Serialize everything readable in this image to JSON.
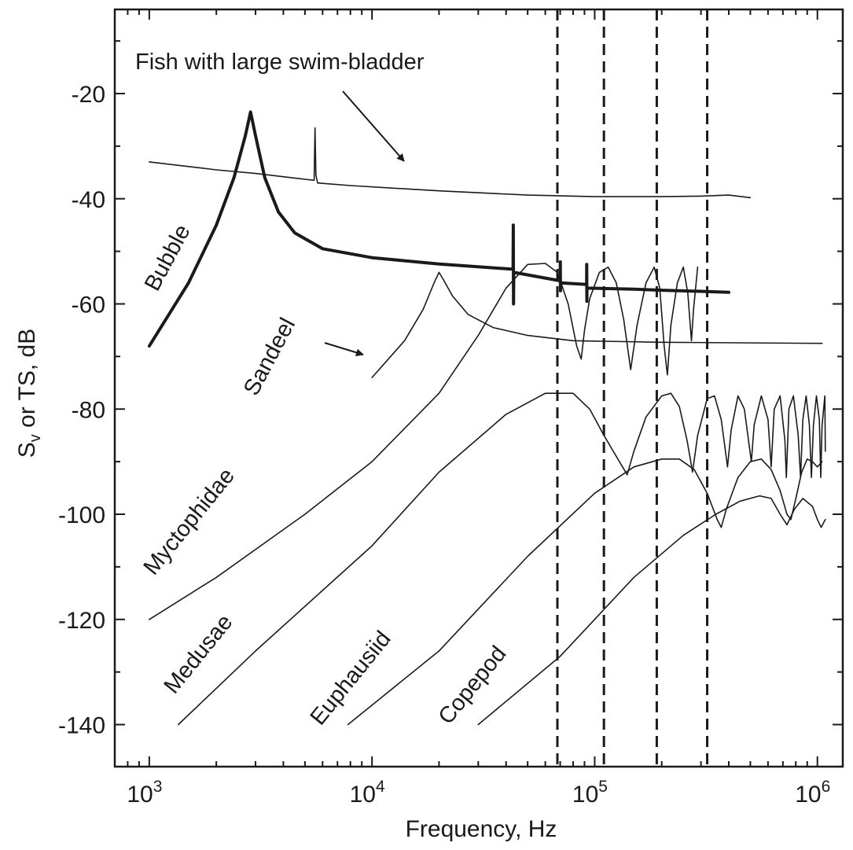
{
  "chart_data": {
    "type": "line",
    "title": "",
    "xlabel": "Frequency, Hz",
    "ylabel": {
      "base": "S",
      "sub": "v",
      "rest": " or TS, dB"
    },
    "xscale": "log",
    "xlim": [
      700,
      1300000
    ],
    "ylim": [
      -148,
      -4
    ],
    "xticks": [
      {
        "value": 1000,
        "base": "10",
        "exp": "3"
      },
      {
        "value": 10000,
        "base": "10",
        "exp": "4"
      },
      {
        "value": 100000,
        "base": "10",
        "exp": "5"
      },
      {
        "value": 1000000,
        "base": "10",
        "exp": "6"
      }
    ],
    "yticks": [
      -20,
      -40,
      -60,
      -80,
      -100,
      -120,
      -140
    ],
    "grid": false,
    "vlines_dashed": [
      68000,
      110000,
      190000,
      320000
    ],
    "series": [
      {
        "name": "Fish with large swim-bladder",
        "width": 1.6,
        "points": [
          [
            1000,
            -33
          ],
          [
            2000,
            -34.5
          ],
          [
            3000,
            -35.2
          ],
          [
            5000,
            -36.3
          ],
          [
            5500,
            -36.5
          ],
          [
            5550,
            -26.5
          ],
          [
            5600,
            -35.5
          ],
          [
            5700,
            -37
          ],
          [
            8000,
            -37.5
          ],
          [
            20000,
            -38.5
          ],
          [
            50000,
            -39.3
          ],
          [
            100000,
            -39.6
          ],
          [
            200000,
            -39.6
          ],
          [
            300000,
            -39.5
          ],
          [
            400000,
            -39.3
          ],
          [
            500000,
            -39.8
          ]
        ]
      },
      {
        "name": "Bubble",
        "width": 4,
        "points": [
          [
            1000,
            -68
          ],
          [
            1500,
            -56
          ],
          [
            2000,
            -45
          ],
          [
            2400,
            -36
          ],
          [
            2700,
            -28
          ],
          [
            2850,
            -23.5
          ],
          [
            3000,
            -28
          ],
          [
            3300,
            -36
          ],
          [
            3800,
            -42.5
          ],
          [
            4500,
            -46.5
          ],
          [
            6000,
            -49.5
          ],
          [
            10000,
            -51.2
          ],
          [
            20000,
            -52.4
          ],
          [
            43000,
            -53.4
          ],
          [
            43100,
            -45
          ],
          [
            43200,
            -60
          ],
          [
            43300,
            -54
          ],
          [
            70000,
            -55.6
          ],
          [
            70100,
            -52
          ],
          [
            70200,
            -57.5
          ],
          [
            70300,
            -56
          ],
          [
            92000,
            -56.3
          ],
          [
            92100,
            -52.5
          ],
          [
            92200,
            -59.5
          ],
          [
            92300,
            -57
          ],
          [
            150000,
            -57.2
          ],
          [
            200000,
            -57.4
          ],
          [
            300000,
            -57.6
          ],
          [
            400000,
            -57.8
          ]
        ]
      },
      {
        "name": "Sandeel",
        "width": 1.6,
        "points": [
          [
            10000,
            -74
          ],
          [
            14000,
            -67
          ],
          [
            17000,
            -61
          ],
          [
            19000,
            -56
          ],
          [
            20000,
            -54
          ],
          [
            21000,
            -55.5
          ],
          [
            23000,
            -58.5
          ],
          [
            27000,
            -62
          ],
          [
            35000,
            -64.5
          ],
          [
            50000,
            -66
          ],
          [
            80000,
            -67
          ],
          [
            200000,
            -67.3
          ],
          [
            1050000,
            -67.5
          ]
        ]
      },
      {
        "name": "Myctophidae",
        "width": 1.6,
        "points": [
          [
            1000,
            -120
          ],
          [
            2000,
            -112
          ],
          [
            5000,
            -100
          ],
          [
            10000,
            -90
          ],
          [
            20000,
            -77
          ],
          [
            30000,
            -66
          ],
          [
            40000,
            -57
          ],
          [
            50000,
            -52.5
          ],
          [
            60000,
            -52.3
          ],
          [
            68000,
            -54
          ],
          [
            76000,
            -60
          ],
          [
            83000,
            -68
          ],
          [
            87000,
            -70.5
          ],
          [
            90000,
            -65
          ],
          [
            95000,
            -59
          ],
          [
            105000,
            -54
          ],
          [
            115000,
            -53
          ],
          [
            125000,
            -56
          ],
          [
            135000,
            -63
          ],
          [
            145000,
            -72.5
          ],
          [
            155000,
            -64
          ],
          [
            170000,
            -56
          ],
          [
            185000,
            -53
          ],
          [
            196000,
            -57
          ],
          [
            205000,
            -68
          ],
          [
            212000,
            -73.5
          ],
          [
            220000,
            -64
          ],
          [
            235000,
            -56
          ],
          [
            250000,
            -53
          ],
          [
            262000,
            -58
          ],
          [
            272000,
            -67
          ],
          [
            278000,
            -61
          ],
          [
            290000,
            -53
          ]
        ]
      },
      {
        "name": "Medusae",
        "width": 1.6,
        "points": [
          [
            1350,
            -140
          ],
          [
            3000,
            -126
          ],
          [
            10000,
            -106
          ],
          [
            20000,
            -92
          ],
          [
            40000,
            -81
          ],
          [
            60000,
            -77
          ],
          [
            80000,
            -77
          ],
          [
            95000,
            -80
          ],
          [
            110000,
            -85
          ],
          [
            125000,
            -89
          ],
          [
            140000,
            -92.5
          ],
          [
            150000,
            -88
          ],
          [
            170000,
            -81.5
          ],
          [
            200000,
            -77.5
          ],
          [
            220000,
            -77
          ],
          [
            240000,
            -79.5
          ],
          [
            260000,
            -86
          ],
          [
            275000,
            -92
          ],
          [
            290000,
            -85
          ],
          [
            320000,
            -78
          ],
          [
            345000,
            -77.5
          ],
          [
            370000,
            -82
          ],
          [
            395000,
            -91
          ],
          [
            410000,
            -84
          ],
          [
            440000,
            -77.5
          ],
          [
            470000,
            -80
          ],
          [
            505000,
            -90
          ],
          [
            520000,
            -83
          ],
          [
            560000,
            -77.5
          ],
          [
            600000,
            -82
          ],
          [
            620000,
            -91
          ],
          [
            640000,
            -80
          ],
          [
            680000,
            -77.5
          ],
          [
            715000,
            -86
          ],
          [
            725000,
            -93
          ],
          [
            745000,
            -80
          ],
          [
            780000,
            -77.5
          ],
          [
            820000,
            -85
          ],
          [
            840000,
            -93
          ],
          [
            860000,
            -82
          ],
          [
            890000,
            -77.5
          ],
          [
            920000,
            -83
          ],
          [
            940000,
            -93
          ],
          [
            960000,
            -83
          ],
          [
            990000,
            -77.5
          ],
          [
            1020000,
            -82
          ],
          [
            1035000,
            -93
          ],
          [
            1050000,
            -83
          ],
          [
            1080000,
            -77.5
          ],
          [
            1085000,
            -88
          ]
        ]
      },
      {
        "name": "Euphausiid",
        "width": 1.6,
        "points": [
          [
            7800,
            -140
          ],
          [
            20000,
            -126
          ],
          [
            50000,
            -108
          ],
          [
            100000,
            -96
          ],
          [
            150000,
            -91
          ],
          [
            200000,
            -89.5
          ],
          [
            240000,
            -89.5
          ],
          [
            280000,
            -91.5
          ],
          [
            320000,
            -96
          ],
          [
            355000,
            -101
          ],
          [
            370000,
            -102.5
          ],
          [
            390000,
            -99
          ],
          [
            440000,
            -93
          ],
          [
            500000,
            -90
          ],
          [
            560000,
            -89.5
          ],
          [
            620000,
            -91.5
          ],
          [
            680000,
            -95.5
          ],
          [
            730000,
            -100
          ],
          [
            760000,
            -101
          ],
          [
            800000,
            -97
          ],
          [
            850000,
            -92
          ],
          [
            900000,
            -89.5
          ],
          [
            950000,
            -90
          ],
          [
            1000000,
            -91
          ],
          [
            1050000,
            -90
          ]
        ]
      },
      {
        "name": "Copepod",
        "width": 1.6,
        "points": [
          [
            30000,
            -140
          ],
          [
            70000,
            -127
          ],
          [
            150000,
            -112
          ],
          [
            250000,
            -104
          ],
          [
            350000,
            -100
          ],
          [
            450000,
            -97.5
          ],
          [
            550000,
            -96.5
          ],
          [
            620000,
            -97
          ],
          [
            680000,
            -100
          ],
          [
            730000,
            -102
          ],
          [
            790000,
            -99
          ],
          [
            860000,
            -97
          ],
          [
            950000,
            -98.5
          ],
          [
            1000000,
            -101
          ],
          [
            1040000,
            -102.5
          ],
          [
            1070000,
            -101.5
          ],
          [
            1085000,
            -101
          ]
        ]
      }
    ],
    "labels": [
      {
        "key": "fish",
        "text": "Fish with large swim-bladder"
      },
      {
        "key": "bubble",
        "text": "Bubble"
      },
      {
        "key": "sandeel",
        "text": "Sandeel"
      },
      {
        "key": "myctophidae",
        "text": "Myctophidae"
      },
      {
        "key": "medusae",
        "text": "Medusae"
      },
      {
        "key": "euphausiid",
        "text": "Euphausiid"
      },
      {
        "key": "copepod",
        "text": "Copepod"
      }
    ],
    "colors": {
      "ink": "#1a1a1a",
      "background": "#ffffff"
    }
  }
}
